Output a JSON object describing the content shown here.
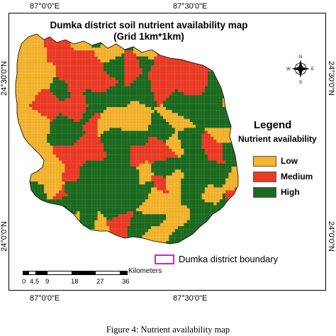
{
  "map": {
    "title_line1": "Dumka district soil nutrient availability map",
    "title_line2": "(Grid 1km*1km)",
    "coords": {
      "top_left": "87°0'0\"E",
      "top_right": "87°30'0\"E",
      "bottom_left": "87°0'0\"E",
      "bottom_right": "87°30'0\"E",
      "left_upper": "24°30'0\"N",
      "left_lower": "24°0'0\"N",
      "right_upper": "24°30'0\"N",
      "right_lower": "24°0'0\"N"
    },
    "compass": {
      "n": "N",
      "s": "S",
      "e": "E",
      "w": "W"
    },
    "legend": {
      "title": "Legend",
      "subtitle": "Nutrient availability",
      "items": [
        {
          "label": "Low",
          "color": "#f7b52c"
        },
        {
          "label": "Medium",
          "color": "#ee3a24"
        },
        {
          "label": "High",
          "color": "#1a6b1e"
        }
      ]
    },
    "boundary": {
      "label": "Dumka district boundary",
      "color": "#b52dc9"
    },
    "scale": {
      "unit": "Kilometers",
      "ticks": [
        "0",
        "4.5",
        "9",
        "18",
        "27",
        "36"
      ]
    }
  },
  "caption": "Figure 4: Nutrient availability map"
}
